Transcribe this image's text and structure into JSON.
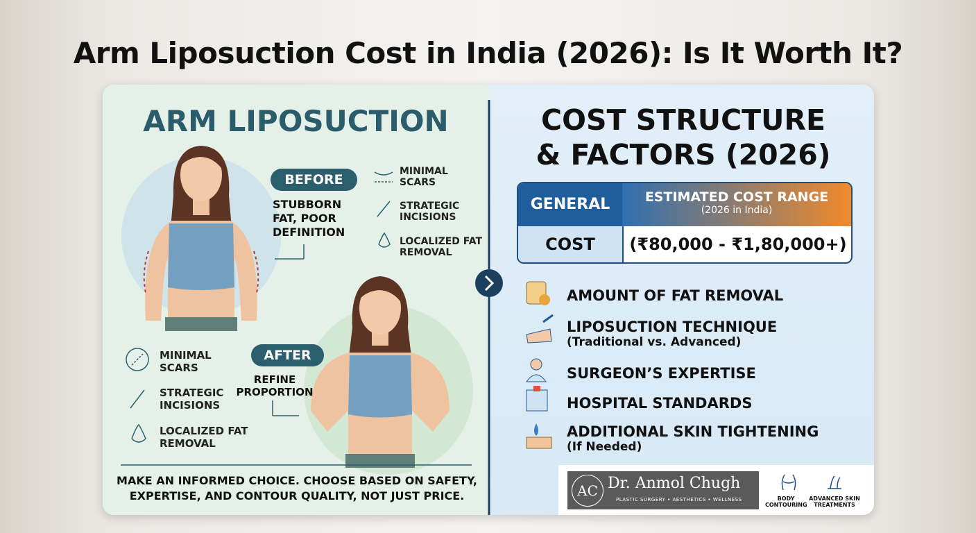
{
  "title": "Arm Liposuction Cost in India (2026): Is It Worth It?",
  "left": {
    "heading": "ARM LIPOSUCTION",
    "before": {
      "badge": "BEFORE",
      "caption": "STUBBORN FAT, POOR DEFINITION"
    },
    "before_features": [
      "MINIMAL SCARS",
      "STRATEGIC INCISIONS",
      "LOCALIZED FAT REMOVAL"
    ],
    "after": {
      "badge": "AFTER",
      "caption": "REFINE PROPORTION"
    },
    "after_features": [
      "MINIMAL SCARS",
      "STRATEGIC INCISIONS",
      "LOCALIZED FAT REMOVAL"
    ],
    "footer": "MAKE AN INFORMED CHOICE. CHOOSE BASED ON SAFETY, EXPERTISE, AND CONTOUR QUALITY, NOT JUST PRICE."
  },
  "right": {
    "heading": "COST STRUCTURE & FACTORS (2026)",
    "table": {
      "header": [
        "GENERAL",
        "ESTIMATED COST RANGE"
      ],
      "header_note": "(2026 in India)",
      "rows": [
        [
          "COST",
          "(₹80,000 - ₹1,80,000+)"
        ]
      ]
    },
    "factors": [
      {
        "label": "AMOUNT OF FAT REMOVAL"
      },
      {
        "label": "LIPOSUCTION TECHNIQUE",
        "note": "(Traditional vs. Advanced)"
      },
      {
        "label": "SURGEON’S EXPERTISE"
      },
      {
        "label": "HOSPITAL STANDARDS"
      },
      {
        "label": "ADDITIONAL SKIN TIGHTENING",
        "note": "(If Needed)"
      }
    ],
    "brand": {
      "logo": "AC",
      "name": "Dr. Anmol Chugh",
      "tagline": "PLASTIC SURGERY • AESTHETICS • WELLNESS",
      "services": [
        "BODY CONTOURING",
        "ADVANCED SKIN TREATMENTS"
      ]
    }
  }
}
